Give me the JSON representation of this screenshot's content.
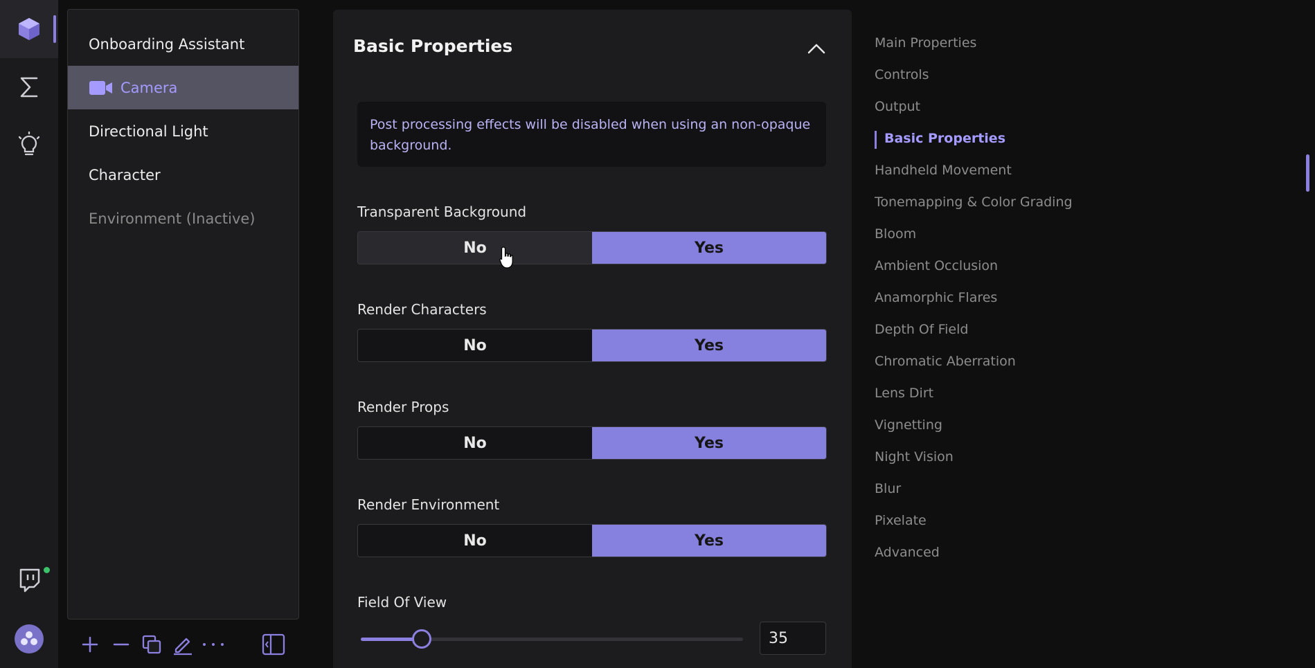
{
  "rail": {
    "items": [
      {
        "icon": "cube-icon",
        "active": true
      },
      {
        "icon": "sigma-icon",
        "active": false
      },
      {
        "icon": "lightbulb-icon",
        "active": false
      }
    ],
    "bottom": [
      {
        "icon": "twitch-icon"
      },
      {
        "icon": "app-logo-icon"
      }
    ]
  },
  "scene": {
    "items": [
      {
        "label": "Onboarding Assistant",
        "state": "normal"
      },
      {
        "label": "Camera",
        "state": "selected",
        "icon": "camera-icon"
      },
      {
        "label": "Directional Light",
        "state": "normal"
      },
      {
        "label": "Character",
        "state": "normal"
      },
      {
        "label": "Environment (Inactive)",
        "state": "inactive"
      }
    ],
    "toolbar": [
      "add-icon",
      "remove-icon",
      "duplicate-icon",
      "rename-icon",
      "more-icon",
      "collapse-panel-icon"
    ]
  },
  "props": {
    "title": "Basic Properties",
    "notice": "Post processing effects will be disabled when using an non-opaque background.",
    "toggles": [
      {
        "label": "Transparent Background",
        "no": "No",
        "yes": "Yes",
        "value": "Yes"
      },
      {
        "label": "Render Characters",
        "no": "No",
        "yes": "Yes",
        "value": "Yes"
      },
      {
        "label": "Render Props",
        "no": "No",
        "yes": "Yes",
        "value": "Yes"
      },
      {
        "label": "Render Environment",
        "no": "No",
        "yes": "Yes",
        "value": "Yes"
      }
    ],
    "fov": {
      "label": "Field Of View",
      "value": "35",
      "slider_fraction": 0.16
    }
  },
  "nav": {
    "items": [
      "Main Properties",
      "Controls",
      "Output",
      "Basic Properties",
      "Handheld Movement",
      "Tonemapping & Color Grading",
      "Bloom",
      "Ambient Occlusion",
      "Anamorphic Flares",
      "Depth Of Field",
      "Chromatic Aberration",
      "Lens Dirt",
      "Vignetting",
      "Night Vision",
      "Blur",
      "Pixelate",
      "Advanced"
    ],
    "active": "Basic Properties"
  },
  "colors": {
    "accent": "#8b80e0",
    "selected_bg": "#545463",
    "toggle_on": "#8680de"
  }
}
